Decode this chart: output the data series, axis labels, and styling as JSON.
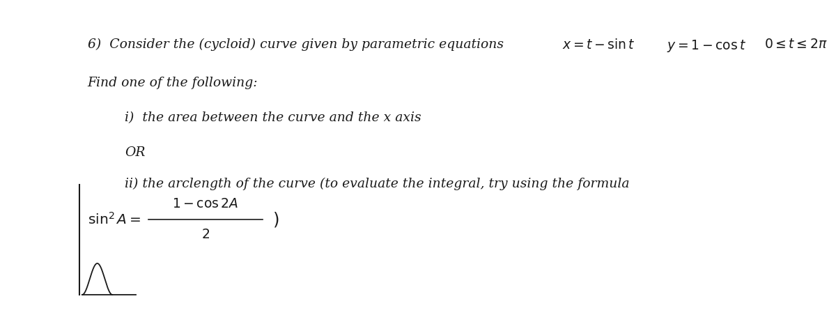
{
  "bg_color": "#ffffff",
  "text_color": "#1a1a1a",
  "line1": "6)  Consider the (cycloid) curve given by parametric equations",
  "line1_math": "x = t − sin t    y = 1− cos t    0 ≤ t ≤ 2π",
  "line2": "Find one of the following:",
  "line3": "i)  the area between the curve and the x axis",
  "line4": "OR",
  "line5": "ii) the arclength of the curve (to evaluate the integral, try using the formula",
  "formula_left": "sin² A =",
  "formula_num": "1 − cos2A",
  "formula_den": "2",
  "formula_right": ")",
  "cycloid_color": "#1a1a1a",
  "axes_color": "#1a1a1a",
  "font_size_main": 13.5,
  "font_size_formula": 13.5
}
